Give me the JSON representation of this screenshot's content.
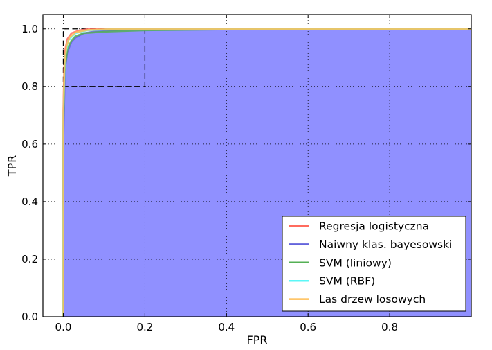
{
  "chart_data": {
    "type": "line",
    "xlabel": "FPR",
    "ylabel": "TPR",
    "xlim": [
      -0.05,
      1.0
    ],
    "ylim": [
      0.0,
      1.05
    ],
    "x_ticks": [
      0.0,
      0.2,
      0.4,
      0.6,
      0.8
    ],
    "y_ticks": [
      0.0,
      0.2,
      0.4,
      0.6,
      0.8,
      1.0
    ],
    "x_tick_labels": [
      "0.0",
      "0.2",
      "0.4",
      "0.6",
      "0.8"
    ],
    "y_tick_labels": [
      "0.0",
      "0.2",
      "0.4",
      "0.6",
      "0.8",
      "1.0"
    ],
    "grid": true,
    "legend_position": "bottom-right",
    "fill_area": {
      "color": "#9090ff",
      "under": "Naiwny klas. bayesowski"
    },
    "zoom_box": {
      "x": [
        0.0,
        0.2
      ],
      "y": [
        0.8,
        1.0
      ],
      "style": "dashed",
      "color": "#000000"
    },
    "series": [
      {
        "name": "Regresja logistyczna",
        "color": "#ff6b5e",
        "points": [
          [
            0,
            0
          ],
          [
            0,
            0.72
          ],
          [
            0.002,
            0.86
          ],
          [
            0.005,
            0.93
          ],
          [
            0.01,
            0.965
          ],
          [
            0.02,
            0.985
          ],
          [
            0.04,
            0.995
          ],
          [
            0.06,
            0.999
          ],
          [
            0.1,
            1.0
          ],
          [
            1.0,
            1.0
          ]
        ]
      },
      {
        "name": "Naiwny klas. bayesowski",
        "color": "#6464dc",
        "points": [
          [
            0,
            0
          ],
          [
            0,
            0.6
          ],
          [
            0.004,
            0.86
          ],
          [
            0.01,
            0.92
          ],
          [
            0.02,
            0.955
          ],
          [
            0.03,
            0.97
          ],
          [
            0.05,
            0.985
          ],
          [
            0.08,
            0.992
          ],
          [
            0.15,
            0.997
          ],
          [
            0.3,
            1.0
          ],
          [
            1.0,
            1.0
          ]
        ]
      },
      {
        "name": "SVM (liniowy)",
        "color": "#55b055",
        "points": [
          [
            0,
            0
          ],
          [
            0,
            0.65
          ],
          [
            0.003,
            0.85
          ],
          [
            0.01,
            0.93
          ],
          [
            0.02,
            0.96
          ],
          [
            0.03,
            0.975
          ],
          [
            0.05,
            0.985
          ],
          [
            0.1,
            0.99
          ],
          [
            0.2,
            0.995
          ],
          [
            0.4,
            0.998
          ],
          [
            1.0,
            1.0
          ]
        ]
      },
      {
        "name": "SVM (RBF)",
        "color": "#5cf7f7",
        "points": [
          [
            -0.002,
            0
          ],
          [
            -0.002,
            0.17
          ],
          [
            0,
            0.4
          ],
          [
            0,
            0.7
          ],
          [
            0.004,
            0.9
          ],
          [
            0.012,
            0.96
          ],
          [
            0.03,
            0.985
          ],
          [
            0.06,
            0.995
          ],
          [
            0.12,
            0.999
          ],
          [
            1.0,
            1.0
          ]
        ]
      },
      {
        "name": "Las drzew losowych",
        "color": "#ffbe55",
        "points": [
          [
            0,
            0
          ],
          [
            0,
            0.7
          ],
          [
            0.003,
            0.88
          ],
          [
            0.008,
            0.94
          ],
          [
            0.015,
            0.97
          ],
          [
            0.03,
            0.988
          ],
          [
            0.06,
            0.996
          ],
          [
            0.12,
            0.999
          ],
          [
            1.0,
            1.0
          ]
        ]
      }
    ]
  }
}
